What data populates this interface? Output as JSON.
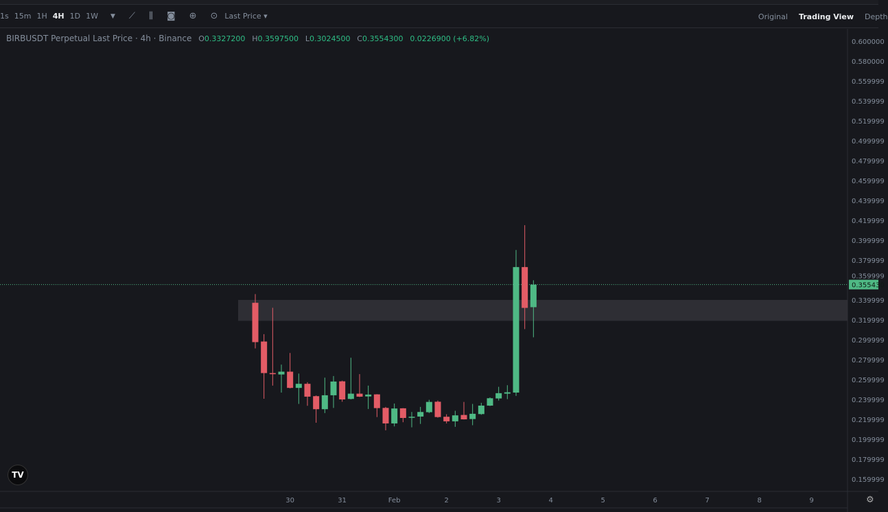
{
  "toolbar": {
    "intervals": [
      "1s",
      "15m",
      "1H",
      "4H",
      "1D",
      "1W"
    ],
    "active": "4H",
    "price_type": "Last Price",
    "views": [
      "Original",
      "Trading View",
      "Depth"
    ],
    "active_view": "Trading View"
  },
  "legend": {
    "symbol": "BIRBUSDT Perpetual Last Price · 4h · Binance",
    "o_label": "O",
    "o": "0.3327200",
    "h_label": "H",
    "h": "0.3597500",
    "l_label": "L",
    "l": "0.3024500",
    "c_label": "C",
    "c": "0.3554300",
    "change": "0.0226900 (+6.82%)"
  },
  "colors": {
    "up": "#4fb985",
    "down": "#e35c66",
    "background": "#17181d",
    "zone": "#34353b"
  },
  "chart_data": {
    "type": "candlestick",
    "interval": "4h",
    "ylim": [
      0.145,
      0.61
    ],
    "y_ticks": [
      "0.600000",
      "0.580000",
      "0.559999",
      "0.539999",
      "0.519999",
      "0.499999",
      "0.479999",
      "0.459999",
      "0.439999",
      "0.419999",
      "0.399999",
      "0.379999",
      "0.359999",
      "0.339999",
      "0.319999",
      "0.299999",
      "0.279999",
      "0.259999",
      "0.239999",
      "0.219999",
      "0.199999",
      "0.179999",
      "0.159999"
    ],
    "x_ticks": [
      "30",
      "31",
      "Feb",
      "2",
      "3",
      "4",
      "5",
      "6",
      "7",
      "8",
      "9"
    ],
    "first_candle_offset_to_30": -4,
    "last_price": 0.35543,
    "last_price_label": "0.355430",
    "zone": [
      0.319,
      0.34
    ],
    "candles": [
      [
        0.3371,
        0.3459,
        0.2913,
        0.2976
      ],
      [
        0.2982,
        0.3056,
        0.2407,
        0.2665
      ],
      [
        0.2665,
        0.3321,
        0.2539,
        0.2654
      ],
      [
        0.2651,
        0.275,
        0.2469,
        0.2679
      ],
      [
        0.2679,
        0.2867,
        0.2511,
        0.2516
      ],
      [
        0.2516,
        0.266,
        0.2355,
        0.2557
      ],
      [
        0.2557,
        0.2573,
        0.2336,
        0.2428
      ],
      [
        0.2433,
        0.244,
        0.2166,
        0.2302
      ],
      [
        0.2302,
        0.2619,
        0.2263,
        0.2442
      ],
      [
        0.2442,
        0.2635,
        0.2315,
        0.258
      ],
      [
        0.2582,
        0.2589,
        0.2377,
        0.24
      ],
      [
        0.2405,
        0.2819,
        0.24,
        0.2458
      ],
      [
        0.2458,
        0.2654,
        0.2424,
        0.2428
      ],
      [
        0.243,
        0.2539,
        0.2304,
        0.2449
      ],
      [
        0.2451,
        0.2453,
        0.2223,
        0.2313
      ],
      [
        0.2315,
        0.2325,
        0.209,
        0.2159
      ],
      [
        0.2159,
        0.2359,
        0.2129,
        0.2309
      ],
      [
        0.2311,
        0.2313,
        0.2171,
        0.2214
      ],
      [
        0.2217,
        0.2274,
        0.212,
        0.2226
      ],
      [
        0.2228,
        0.2325,
        0.2154,
        0.2274
      ],
      [
        0.2272,
        0.2396,
        0.2263,
        0.2375
      ],
      [
        0.2377,
        0.2389,
        0.2216,
        0.2223
      ],
      [
        0.2226,
        0.2251,
        0.2159,
        0.218
      ],
      [
        0.218,
        0.2286,
        0.2125,
        0.224
      ],
      [
        0.2244,
        0.2375,
        0.2198,
        0.22
      ],
      [
        0.2203,
        0.2355,
        0.2141,
        0.2256
      ],
      [
        0.2253,
        0.2366,
        0.2246,
        0.2338
      ],
      [
        0.2338,
        0.2421,
        0.2334,
        0.2412
      ],
      [
        0.241,
        0.2527,
        0.2389,
        0.2463
      ],
      [
        0.2458,
        0.2543,
        0.2403,
        0.2472
      ],
      [
        0.2469,
        0.3902,
        0.2435,
        0.373
      ],
      [
        0.373,
        0.4151,
        0.3107,
        0.332
      ],
      [
        0.33272,
        0.35975,
        0.30245,
        0.35543
      ]
    ]
  }
}
